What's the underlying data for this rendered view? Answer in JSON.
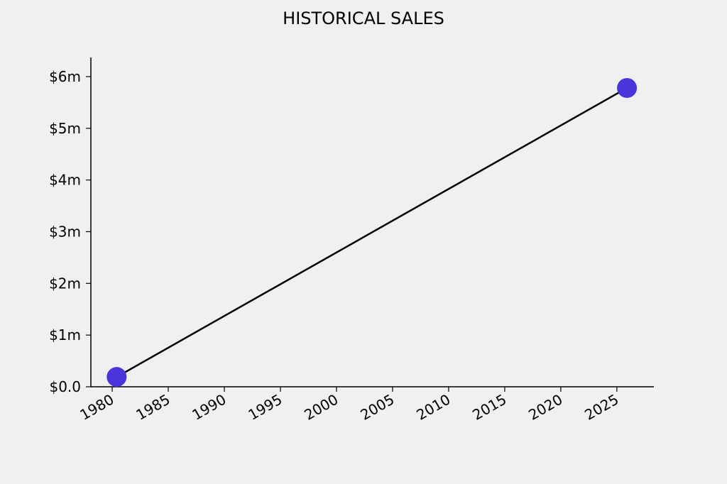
{
  "chart_data": {
    "type": "line",
    "title": "HISTORICAL SALES",
    "x": [
      1980.4,
      2025.9
    ],
    "series": [
      {
        "values": [
          190000,
          5780000
        ],
        "color": "#000000",
        "marker_color": "#4a35db"
      }
    ],
    "xlim": [
      1978.1,
      2028.3
    ],
    "xticks": [
      1980,
      1985,
      1990,
      1995,
      2000,
      2005,
      2010,
      2015,
      2020,
      2025
    ],
    "ylim": [
      0,
      6370000
    ],
    "yticks": [
      {
        "value": 0,
        "label": "$0.0"
      },
      {
        "value": 1000000,
        "label": "$1m"
      },
      {
        "value": 2000000,
        "label": "$2m"
      },
      {
        "value": 3000000,
        "label": "$3m"
      },
      {
        "value": 4000000,
        "label": "$4m"
      },
      {
        "value": 5000000,
        "label": "$5m"
      },
      {
        "value": 6000000,
        "label": "$6m"
      }
    ],
    "grid": false
  }
}
